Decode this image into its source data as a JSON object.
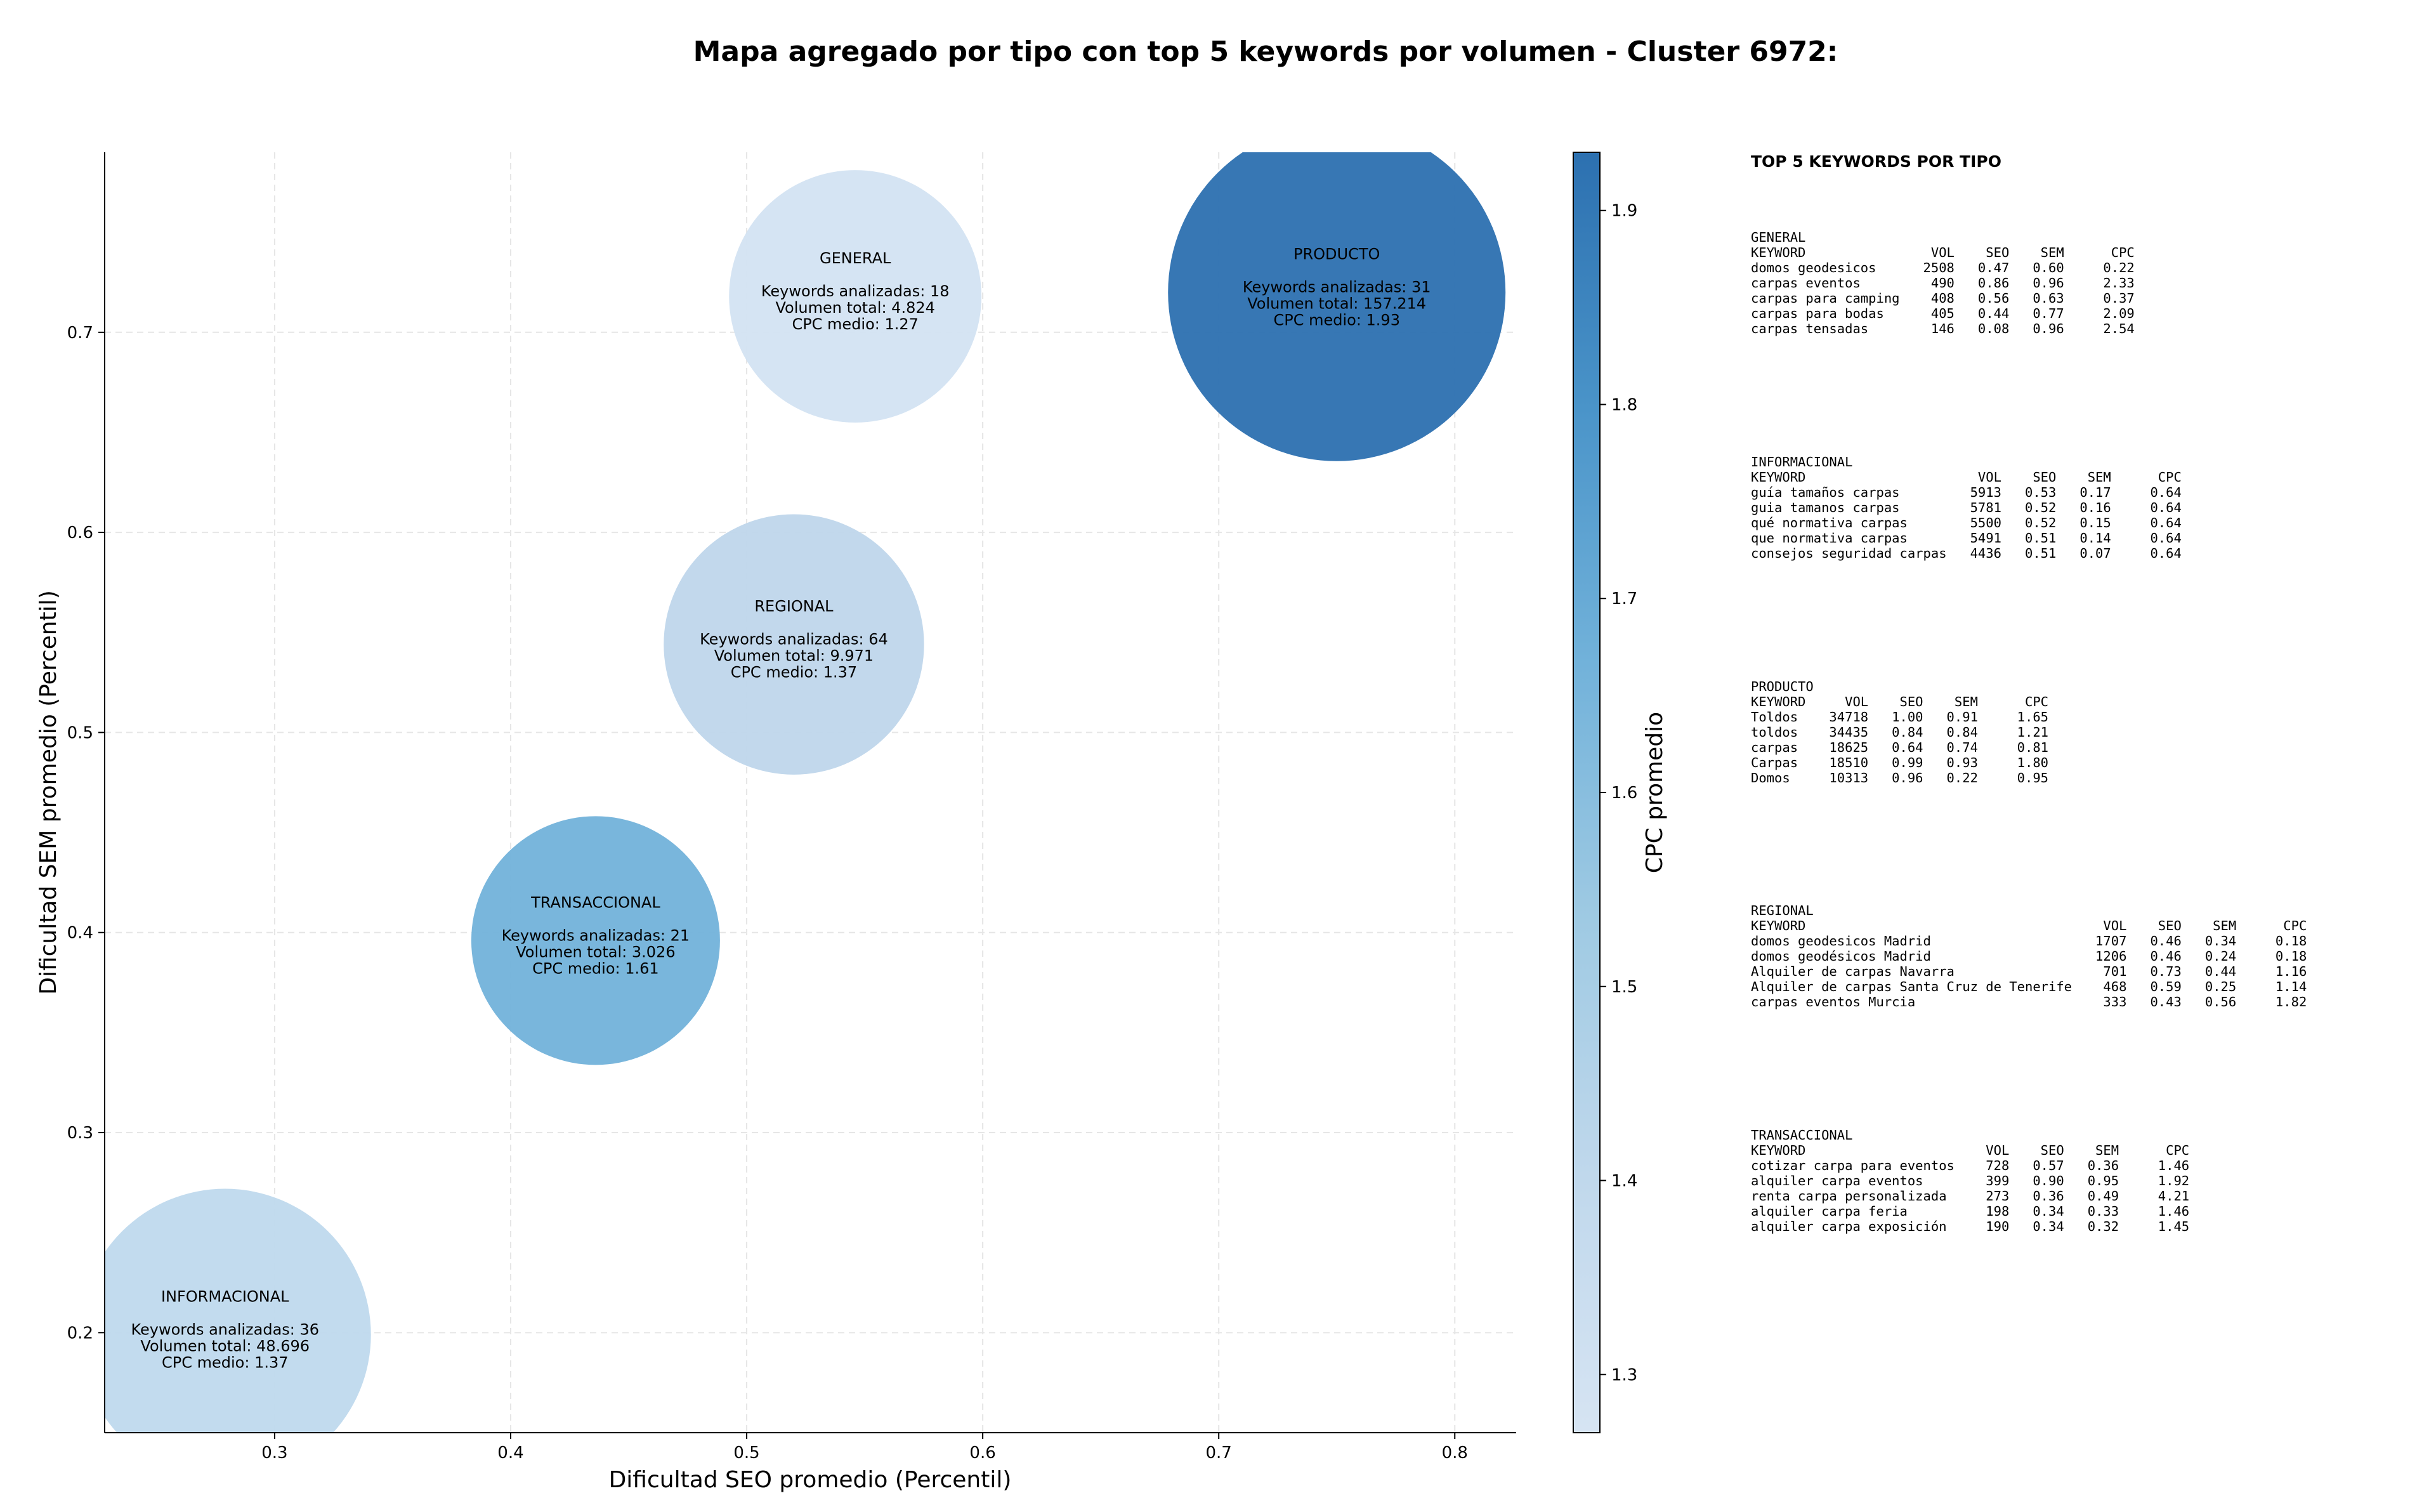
{
  "title": "Mapa agregado por tipo con top 5 keywords por volumen - Cluster 6972:",
  "chart_data": {
    "type": "scatter",
    "variant": "bubble",
    "xlabel": "Dificultad SEO promedio (Percentil)",
    "ylabel": "Dificultad SEM promedio (Percentil)",
    "colorbar_label": "CPC promedio",
    "xlim": [
      0.228,
      0.826
    ],
    "ylim": [
      0.15,
      0.79
    ],
    "x_ticks": [
      0.3,
      0.4,
      0.5,
      0.6,
      0.7,
      0.8
    ],
    "y_ticks": [
      0.2,
      0.3,
      0.4,
      0.5,
      0.6,
      0.7
    ],
    "colorbar_ticks": [
      1.3,
      1.4,
      1.5,
      1.6,
      1.7,
      1.8,
      1.9
    ],
    "colorbar_range": [
      1.27,
      1.93
    ],
    "grid": true,
    "points": [
      {
        "name": "GENERAL",
        "x": 0.546,
        "y": 0.718,
        "keywords": "Keywords analizadas: 18",
        "volume": "Volumen total: 4.824",
        "cpc_text": "CPC medio: 1.27",
        "cpc": 1.27,
        "color": "#d3e3f2"
      },
      {
        "name": "PRODUCTO",
        "x": 0.75,
        "y": 0.72,
        "keywords": "Keywords analizadas: 31",
        "volume": "Volumen total: 157.214",
        "cpc_text": "CPC medio: 1.93",
        "cpc": 1.93,
        "color": "#2c70b0"
      },
      {
        "name": "REGIONAL",
        "x": 0.52,
        "y": 0.544,
        "keywords": "Keywords analizadas: 64",
        "volume": "Volumen total: 9.971",
        "cpc_text": "CPC medio: 1.37",
        "cpc": 1.37,
        "color": "#bfd6eb"
      },
      {
        "name": "TRANSACCIONAL",
        "x": 0.436,
        "y": 0.396,
        "keywords": "Keywords analizadas: 21",
        "volume": "Volumen total: 3.026",
        "cpc_text": "CPC medio: 1.61",
        "cpc": 1.61,
        "color": "#72b2da"
      },
      {
        "name": "INFORMACIONAL",
        "x": 0.279,
        "y": 0.199,
        "keywords": "Keywords analizadas: 36",
        "volume": "Volumen total: 48.696",
        "cpc_text": "CPC medio: 1.37",
        "cpc": 1.37,
        "color": "#bfd9ed"
      }
    ],
    "colorscale": [
      "#d6e4f3",
      "#c0d8ec",
      "#9fcae3",
      "#72b2da",
      "#4a94c9",
      "#2c70b0"
    ]
  },
  "panel": {
    "heading": "TOP 5 KEYWORDS POR TIPO",
    "blocks": [
      {
        "name": "general",
        "lines": [
          "GENERAL",
          "KEYWORD                VOL    SEO    SEM      CPC",
          "domos geodesicos      2508   0.47   0.60     0.22",
          "carpas eventos         490   0.86   0.96     2.33",
          "carpas para camping    408   0.56   0.63     0.37",
          "carpas para bodas      405   0.44   0.77     2.09",
          "carpas tensadas        146   0.08   0.96     2.54"
        ]
      },
      {
        "name": "informacional",
        "lines": [
          "INFORMACIONAL",
          "KEYWORD                      VOL    SEO    SEM      CPC",
          "guía tamaños carpas         5913   0.53   0.17     0.64",
          "guia tamanos carpas         5781   0.52   0.16     0.64",
          "qué normativa carpas        5500   0.52   0.15     0.64",
          "que normativa carpas        5491   0.51   0.14     0.64",
          "consejos seguridad carpas   4436   0.51   0.07     0.64"
        ]
      },
      {
        "name": "producto",
        "lines": [
          "PRODUCTO",
          "KEYWORD     VOL    SEO    SEM      CPC",
          "Toldos    34718   1.00   0.91     1.65",
          "toldos    34435   0.84   0.84     1.21",
          "carpas    18625   0.64   0.74     0.81",
          "Carpas    18510   0.99   0.93     1.80",
          "Domos     10313   0.96   0.22     0.95"
        ]
      },
      {
        "name": "regional",
        "lines": [
          "REGIONAL",
          "KEYWORD                                      VOL    SEO    SEM      CPC",
          "domos geodesicos Madrid                     1707   0.46   0.34     0.18",
          "domos geodésicos Madrid                     1206   0.46   0.24     0.18",
          "Alquiler de carpas Navarra                   701   0.73   0.44     1.16",
          "Alquiler de carpas Santa Cruz de Tenerife    468   0.59   0.25     1.14",
          "carpas eventos Murcia                        333   0.43   0.56     1.82"
        ]
      },
      {
        "name": "transaccional",
        "lines": [
          "TRANSACCIONAL",
          "KEYWORD                       VOL    SEO    SEM      CPC",
          "cotizar carpa para eventos    728   0.57   0.36     1.46",
          "alquiler carpa eventos        399   0.90   0.95     1.92",
          "renta carpa personalizada     273   0.36   0.49     4.21",
          "alquiler carpa feria          198   0.34   0.33     1.46",
          "alquiler carpa exposición     190   0.34   0.32     1.45"
        ]
      }
    ]
  }
}
